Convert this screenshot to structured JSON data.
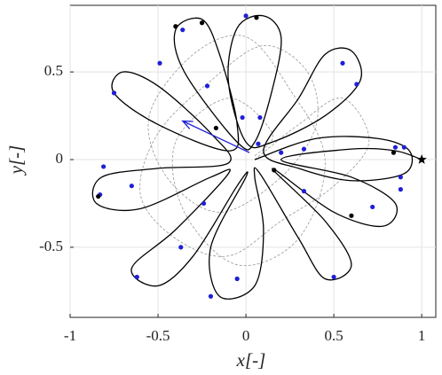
{
  "chart_data": {
    "type": "line",
    "xlabel": "x[-]",
    "ylabel": "y[-]",
    "xlim": [
      -1,
      1.08
    ],
    "ylim": [
      -0.9,
      0.88
    ],
    "xticks": [
      -1,
      -0.5,
      0,
      0.5,
      1
    ],
    "yticks": [
      -0.5,
      0,
      0.5
    ],
    "grid": true,
    "series": [
      {
        "style": "dashed",
        "color": "#999999",
        "x": [
          0.05,
          0.3,
          0.55,
          0.7,
          0.5,
          0.2,
          -0.1,
          -0.4,
          -0.6,
          -0.5,
          -0.2,
          0.1,
          0.35,
          0.4,
          0.2,
          -0.15,
          -0.45,
          -0.55,
          -0.3,
          0.0,
          0.25,
          0.45,
          0.3,
          -0.05,
          -0.35,
          -0.4,
          -0.1,
          0.15,
          0.05
        ],
        "y": [
          0.0,
          0.2,
          0.35,
          0.1,
          -0.15,
          -0.35,
          -0.55,
          -0.45,
          -0.2,
          0.15,
          0.45,
          0.65,
          0.5,
          0.2,
          -0.1,
          -0.3,
          -0.1,
          0.25,
          0.6,
          0.7,
          0.4,
          0.0,
          -0.45,
          -0.6,
          -0.3,
          0.1,
          0.35,
          0.15,
          0.02
        ]
      },
      {
        "style": "solid",
        "color": "#000000",
        "x": [
          0.05,
          0.4,
          0.75,
          0.93,
          0.9,
          0.6,
          0.3,
          0.1,
          0.3,
          0.45,
          0.6,
          0.65,
          0.45,
          0.15,
          0.0,
          -0.1,
          -0.05,
          0.1,
          0.2,
          0.15,
          0.05,
          -0.05,
          -0.35,
          -0.4,
          -0.25,
          -0.15,
          -0.05,
          -0.1,
          -0.5,
          -0.75,
          -0.7,
          -0.5,
          -0.2,
          -0.1,
          -0.5,
          -0.82,
          -0.85,
          -0.6,
          -0.2,
          -0.1,
          -0.4,
          -0.65,
          -0.5,
          -0.3,
          -0.05,
          0.0,
          -0.2,
          -0.15,
          0.05,
          0.1,
          0.05,
          0.08,
          0.3,
          0.45,
          0.6,
          0.45,
          0.15,
          0.5,
          0.78,
          0.85,
          0.6,
          0.2,
          0.6,
          0.85,
          1.0
        ],
        "y": [
          0.0,
          0.12,
          0.12,
          0.05,
          -0.08,
          -0.12,
          -0.05,
          0.05,
          0.35,
          0.6,
          0.62,
          0.45,
          0.25,
          0.1,
          0.1,
          0.45,
          0.75,
          0.82,
          0.7,
          0.4,
          0.1,
          0.1,
          0.5,
          0.74,
          0.8,
          0.6,
          0.2,
          0.05,
          0.2,
          0.38,
          0.5,
          0.42,
          0.15,
          -0.02,
          -0.05,
          -0.1,
          -0.25,
          -0.28,
          -0.1,
          -0.08,
          -0.4,
          -0.62,
          -0.72,
          -0.55,
          -0.15,
          -0.1,
          -0.5,
          -0.78,
          -0.72,
          -0.4,
          -0.1,
          -0.08,
          -0.45,
          -0.68,
          -0.6,
          -0.35,
          -0.05,
          -0.3,
          -0.38,
          -0.25,
          -0.1,
          0.0,
          0.06,
          0.05,
          0.0
        ]
      },
      {
        "style": "markers",
        "color": "#1f1fd6",
        "x": [
          0.0,
          -0.36,
          -0.75,
          0.55,
          0.63,
          -0.49,
          -0.22,
          -0.83,
          -0.81,
          -0.65,
          -0.62,
          -0.37,
          -0.2,
          -0.05,
          -0.24,
          0.5,
          0.33,
          0.72,
          0.88,
          0.88,
          0.9,
          0.85,
          0.33,
          0.08,
          -0.02,
          0.07,
          0.2
        ],
        "y": [
          0.82,
          0.74,
          0.38,
          0.55,
          0.43,
          0.55,
          0.42,
          -0.2,
          -0.04,
          -0.15,
          -0.67,
          -0.5,
          -0.78,
          -0.68,
          -0.25,
          -0.67,
          -0.18,
          -0.27,
          -0.17,
          -0.1,
          0.07,
          0.07,
          0.06,
          0.24,
          0.24,
          0.09,
          0.04
        ]
      },
      {
        "style": "markers",
        "color": "#000000",
        "x": [
          -0.4,
          -0.25,
          0.06,
          -0.84,
          0.6,
          0.84,
          -0.17,
          0.16
        ],
        "y": [
          0.76,
          0.78,
          0.81,
          -0.21,
          -0.32,
          0.04,
          0.18,
          -0.06
        ]
      },
      {
        "style": "star",
        "color": "#000000",
        "x": [
          1.0
        ],
        "y": [
          0.0
        ]
      },
      {
        "style": "arrow",
        "color": "#1f1fd6",
        "x": [
          0.02,
          -0.36
        ],
        "y": [
          0.04,
          0.22
        ]
      }
    ]
  }
}
